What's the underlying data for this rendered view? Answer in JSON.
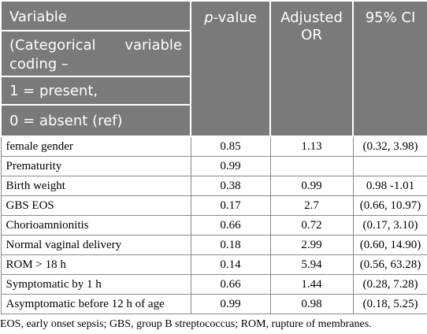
{
  "header": {
    "variable_lines": [
      "Variable",
      "(Categorical",
      "variable",
      "coding –",
      "1 = present,",
      "0 = absent (ref)"
    ],
    "pvalue_p": "p",
    "pvalue_rest": "-value",
    "adjusted_or": "Adjusted OR",
    "ci": "95% CI"
  },
  "rows": [
    {
      "variable": "female gender",
      "p": "0.85",
      "or": "1.13",
      "ci": "(0.32, 3.98)"
    },
    {
      "variable": "Prematurity",
      "p": "0.99",
      "or": "",
      "ci": ""
    },
    {
      "variable": "Birth weight",
      "p": "0.38",
      "or": "0.99",
      "ci": "0.98 -1.01"
    },
    {
      "variable": "GBS EOS",
      "p": "0.17",
      "or": "2.7",
      "ci": "(0.66, 10.97)"
    },
    {
      "variable": "Chorioamnionitis",
      "p": "0.66",
      "or": "0.72",
      "ci": "(0.17, 3.10)"
    },
    {
      "variable": "Normal vaginal delivery",
      "p": "0.18",
      "or": "2.99",
      "ci": "(0.60, 14.90)"
    },
    {
      "variable": "ROM > 18 h",
      "p": "0.14",
      "or": "5.94",
      "ci": "(0.56, 63.28)"
    },
    {
      "variable": "Symptomatic by 1 h",
      "p": "0.66",
      "or": "1.44",
      "ci": "(0.28, 7.28)"
    },
    {
      "variable": "Asymptomatic before 12 h of age",
      "p": "0.99",
      "or": "0.98",
      "ci": "(0.18, 5.25)"
    }
  ],
  "footnote": "EOS, early onset sepsis; GBS, group B streptococcus; ROM, rupture of membranes."
}
